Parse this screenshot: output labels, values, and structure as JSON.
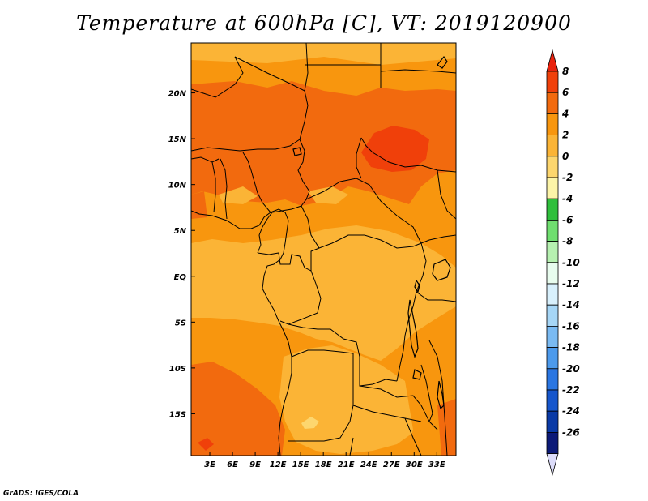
{
  "title": "Temperature at 600hPa [C], VT: 2019120900",
  "credit": "GrADS: IGES/COLA",
  "map": {
    "lon_range": [
      0,
      35
    ],
    "lat_range": [
      -20,
      25
    ],
    "x_ticks": [
      {
        "lon": 3,
        "label": "3E"
      },
      {
        "lon": 6,
        "label": "6E"
      },
      {
        "lon": 9,
        "label": "9E"
      },
      {
        "lon": 12,
        "label": "12E"
      },
      {
        "lon": 15,
        "label": "15E"
      },
      {
        "lon": 18,
        "label": "18E"
      },
      {
        "lon": 21,
        "label": "21E"
      },
      {
        "lon": 24,
        "label": "24E"
      },
      {
        "lon": 27,
        "label": "27E"
      },
      {
        "lon": 30,
        "label": "30E"
      },
      {
        "lon": 33,
        "label": "33E"
      }
    ],
    "y_ticks": [
      {
        "lat": 20,
        "label": "20N"
      },
      {
        "lat": 15,
        "label": "15N"
      },
      {
        "lat": 10,
        "label": "10N"
      },
      {
        "lat": 5,
        "label": "5N"
      },
      {
        "lat": 0,
        "label": "EQ"
      },
      {
        "lat": -5,
        "label": "5S"
      },
      {
        "lat": -10,
        "label": "10S"
      },
      {
        "lat": -15,
        "label": "15S"
      }
    ]
  },
  "colorbar": {
    "labels": [
      "8",
      "6",
      "4",
      "2",
      "0",
      "-2",
      "-4",
      "-6",
      "-8",
      "-10",
      "-12",
      "-14",
      "-16",
      "-18",
      "-20",
      "-22",
      "-24",
      "-26"
    ],
    "colors": [
      "#e8220e",
      "#f0400a",
      "#f26a0e",
      "#f8960e",
      "#fbb436",
      "#fdd66e",
      "#fcf4a8",
      "#2fbf3c",
      "#6fde6f",
      "#b6f0b0",
      "#e8fcee",
      "#d8f0fc",
      "#a6d6f6",
      "#7abaf2",
      "#4c9aec",
      "#2a76e2",
      "#1656cc",
      "#0a3aa6",
      "#0c1a78",
      "#dcdcfa"
    ]
  },
  "field_colors": {
    "c0": "#fbb436",
    "c2": "#f8960e",
    "c4": "#f26a0e",
    "c6": "#f0400a",
    "cneg2": "#fdd66e"
  }
}
